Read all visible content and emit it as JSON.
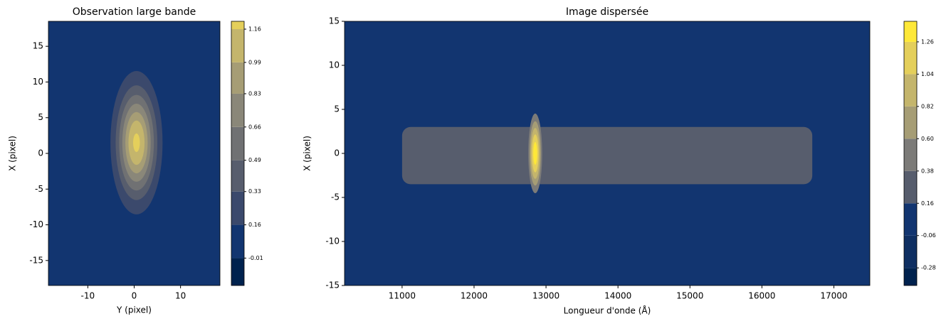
{
  "chart_data": [
    {
      "type": "contour",
      "title": "Observation large bande",
      "xlabel": "Y (pixel)",
      "ylabel": "X (pixel)",
      "xlim": [
        -18.5,
        18.5
      ],
      "ylim": [
        -18.5,
        18.5
      ],
      "xticks": [
        -10,
        0,
        10
      ],
      "yticks": [
        -15,
        -10,
        -5,
        0,
        5,
        10,
        15
      ],
      "colorbar": {
        "lim": [
          -0.15,
          1.2
        ],
        "ticks": [
          -0.01,
          0.16,
          0.33,
          0.49,
          0.66,
          0.83,
          0.99,
          1.16
        ],
        "colors": [
          "#00224e",
          "#123570",
          "#3b496c",
          "#575d6d",
          "#707173",
          "#8a8779",
          "#a69d75",
          "#c4b56c",
          "#e4cf5b"
        ]
      },
      "background": 0.05,
      "source": {
        "x": 0.5,
        "y": 1.5,
        "sx": 2.8,
        "sy": 5,
        "peak": 1.2
      }
    },
    {
      "type": "contour",
      "title": "Image dispersée",
      "xlabel": "Longueur d'onde (Å)",
      "ylabel": "X (pixel)",
      "xlim": [
        10200,
        17500
      ],
      "ylim": [
        -15,
        15
      ],
      "xticks": [
        11000,
        12000,
        13000,
        14000,
        15000,
        16000,
        17000
      ],
      "yticks": [
        -15,
        -10,
        -5,
        0,
        5,
        10,
        15
      ],
      "colorbar": {
        "lim": [
          -0.4,
          1.4
        ],
        "ticks": [
          -0.28,
          -0.06,
          0.16,
          0.38,
          {
            "value": 0.6,
            "label": "0.60"
          },
          0.82,
          1.04,
          1.26
        ],
        "colors": [
          "#00224e",
          "#0f2f62",
          "#123570",
          "#575d6d",
          "#7c7b78",
          "#a69d75",
          "#c4b56c",
          "#e4cf5b",
          "#fee838"
        ]
      },
      "background": 0.05,
      "band": {
        "x0": 11000,
        "x1": 16700,
        "y0": -3.5,
        "y1": 3,
        "value": 0.25
      },
      "source": {
        "x": 12850,
        "y": 0,
        "sx": 60,
        "sy": 2.8,
        "peak": 1.4
      }
    }
  ]
}
